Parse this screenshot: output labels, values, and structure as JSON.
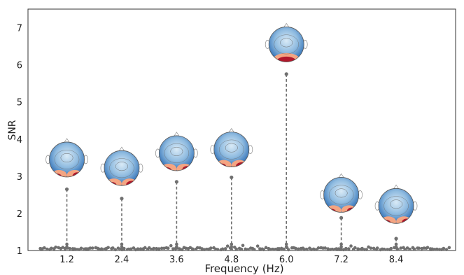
{
  "chart_data": {
    "type": "scatter",
    "title": "",
    "xlabel": "Frequency (Hz)",
    "ylabel": "SNR",
    "xlim": [
      0.35,
      9.7
    ],
    "ylim": [
      1.0,
      7.5
    ],
    "xticks": [
      1.2,
      2.4,
      3.6,
      4.8,
      6.0,
      7.2,
      8.4
    ],
    "xtick_labels": [
      "1.2",
      "2.4",
      "3.6",
      "4.8",
      "6.0",
      "7.2",
      "8.4"
    ],
    "yticks": [
      1,
      2,
      3,
      4,
      5,
      6,
      7
    ],
    "ytick_labels": [
      "1",
      "2",
      "3",
      "4",
      "5",
      "6",
      "7"
    ],
    "grid": false,
    "marker_color": "#707070",
    "stem_style": "dashed",
    "peaks": [
      {
        "x": 1.2,
        "y": 2.65
      },
      {
        "x": 2.4,
        "y": 2.4
      },
      {
        "x": 3.6,
        "y": 2.85
      },
      {
        "x": 4.8,
        "y": 2.97
      },
      {
        "x": 6.0,
        "y": 5.75
      },
      {
        "x": 7.2,
        "y": 1.88
      },
      {
        "x": 8.4,
        "y": 1.32
      }
    ],
    "topomaps": [
      {
        "frequency": 1.2,
        "snr_center": 3.45,
        "posterior_activation": "moderate"
      },
      {
        "frequency": 2.4,
        "snr_center": 3.22,
        "posterior_activation": "strong"
      },
      {
        "frequency": 3.6,
        "snr_center": 3.62,
        "posterior_activation": "moderate"
      },
      {
        "frequency": 4.8,
        "snr_center": 3.72,
        "posterior_activation": "strong"
      },
      {
        "frequency": 6.0,
        "snr_center": 6.55,
        "posterior_activation": "strong-central"
      },
      {
        "frequency": 7.2,
        "snr_center": 2.5,
        "posterior_activation": "moderate"
      },
      {
        "frequency": 8.4,
        "snr_center": 2.2,
        "posterior_activation": "moderate"
      }
    ],
    "noise_floor": {
      "x_range": [
        0.62,
        9.55
      ],
      "count": 180,
      "y_base": 1.05,
      "y_spread": 0.06
    },
    "colors": {
      "peak_marker": "#707070",
      "stem": "#707070",
      "topomap_blue_dark": "#2d6db4",
      "topomap_blue_light": "#d9eaf6",
      "topomap_red": "#b2182b",
      "topomap_red_light": "#f4a582",
      "axis": "#333333"
    }
  }
}
